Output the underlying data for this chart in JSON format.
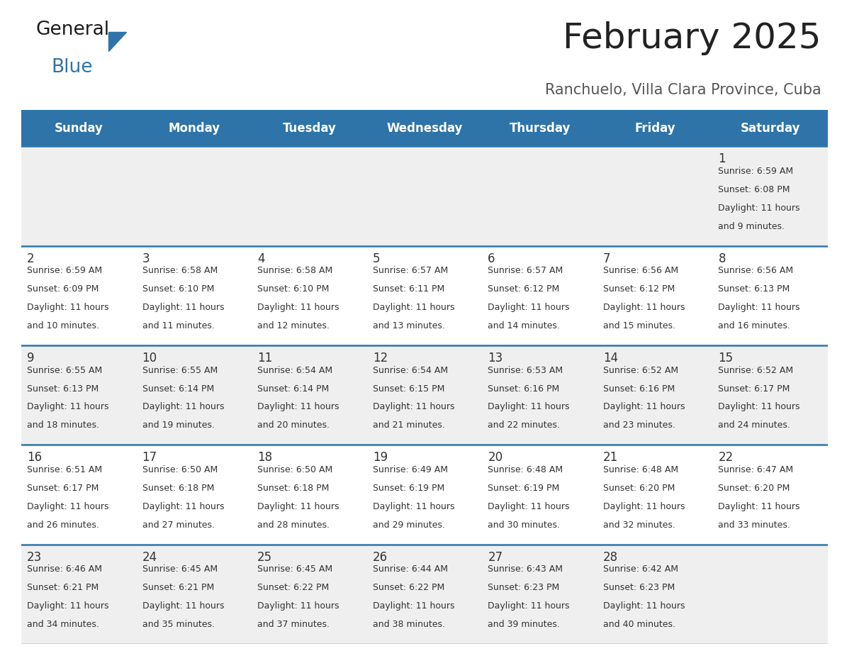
{
  "title": "February 2025",
  "subtitle": "Ranchuelo, Villa Clara Province, Cuba",
  "header_bg": "#2E74A8",
  "header_text": "#FFFFFF",
  "row_bg_odd": "#EFEFEF",
  "row_bg_even": "#FFFFFF",
  "day_headers": [
    "Sunday",
    "Monday",
    "Tuesday",
    "Wednesday",
    "Thursday",
    "Friday",
    "Saturday"
  ],
  "calendar_data": [
    [
      null,
      null,
      null,
      null,
      null,
      null,
      {
        "day": 1,
        "sunrise": "6:59 AM",
        "sunset": "6:08 PM",
        "daylight": "11 hours and 9 minutes."
      }
    ],
    [
      {
        "day": 2,
        "sunrise": "6:59 AM",
        "sunset": "6:09 PM",
        "daylight": "11 hours and 10 minutes."
      },
      {
        "day": 3,
        "sunrise": "6:58 AM",
        "sunset": "6:10 PM",
        "daylight": "11 hours and 11 minutes."
      },
      {
        "day": 4,
        "sunrise": "6:58 AM",
        "sunset": "6:10 PM",
        "daylight": "11 hours and 12 minutes."
      },
      {
        "day": 5,
        "sunrise": "6:57 AM",
        "sunset": "6:11 PM",
        "daylight": "11 hours and 13 minutes."
      },
      {
        "day": 6,
        "sunrise": "6:57 AM",
        "sunset": "6:12 PM",
        "daylight": "11 hours and 14 minutes."
      },
      {
        "day": 7,
        "sunrise": "6:56 AM",
        "sunset": "6:12 PM",
        "daylight": "11 hours and 15 minutes."
      },
      {
        "day": 8,
        "sunrise": "6:56 AM",
        "sunset": "6:13 PM",
        "daylight": "11 hours and 16 minutes."
      }
    ],
    [
      {
        "day": 9,
        "sunrise": "6:55 AM",
        "sunset": "6:13 PM",
        "daylight": "11 hours and 18 minutes."
      },
      {
        "day": 10,
        "sunrise": "6:55 AM",
        "sunset": "6:14 PM",
        "daylight": "11 hours and 19 minutes."
      },
      {
        "day": 11,
        "sunrise": "6:54 AM",
        "sunset": "6:14 PM",
        "daylight": "11 hours and 20 minutes."
      },
      {
        "day": 12,
        "sunrise": "6:54 AM",
        "sunset": "6:15 PM",
        "daylight": "11 hours and 21 minutes."
      },
      {
        "day": 13,
        "sunrise": "6:53 AM",
        "sunset": "6:16 PM",
        "daylight": "11 hours and 22 minutes."
      },
      {
        "day": 14,
        "sunrise": "6:52 AM",
        "sunset": "6:16 PM",
        "daylight": "11 hours and 23 minutes."
      },
      {
        "day": 15,
        "sunrise": "6:52 AM",
        "sunset": "6:17 PM",
        "daylight": "11 hours and 24 minutes."
      }
    ],
    [
      {
        "day": 16,
        "sunrise": "6:51 AM",
        "sunset": "6:17 PM",
        "daylight": "11 hours and 26 minutes."
      },
      {
        "day": 17,
        "sunrise": "6:50 AM",
        "sunset": "6:18 PM",
        "daylight": "11 hours and 27 minutes."
      },
      {
        "day": 18,
        "sunrise": "6:50 AM",
        "sunset": "6:18 PM",
        "daylight": "11 hours and 28 minutes."
      },
      {
        "day": 19,
        "sunrise": "6:49 AM",
        "sunset": "6:19 PM",
        "daylight": "11 hours and 29 minutes."
      },
      {
        "day": 20,
        "sunrise": "6:48 AM",
        "sunset": "6:19 PM",
        "daylight": "11 hours and 30 minutes."
      },
      {
        "day": 21,
        "sunrise": "6:48 AM",
        "sunset": "6:20 PM",
        "daylight": "11 hours and 32 minutes."
      },
      {
        "day": 22,
        "sunrise": "6:47 AM",
        "sunset": "6:20 PM",
        "daylight": "11 hours and 33 minutes."
      }
    ],
    [
      {
        "day": 23,
        "sunrise": "6:46 AM",
        "sunset": "6:21 PM",
        "daylight": "11 hours and 34 minutes."
      },
      {
        "day": 24,
        "sunrise": "6:45 AM",
        "sunset": "6:21 PM",
        "daylight": "11 hours and 35 minutes."
      },
      {
        "day": 25,
        "sunrise": "6:45 AM",
        "sunset": "6:22 PM",
        "daylight": "11 hours and 37 minutes."
      },
      {
        "day": 26,
        "sunrise": "6:44 AM",
        "sunset": "6:22 PM",
        "daylight": "11 hours and 38 minutes."
      },
      {
        "day": 27,
        "sunrise": "6:43 AM",
        "sunset": "6:23 PM",
        "daylight": "11 hours and 39 minutes."
      },
      {
        "day": 28,
        "sunrise": "6:42 AM",
        "sunset": "6:23 PM",
        "daylight": "11 hours and 40 minutes."
      },
      null
    ]
  ],
  "divider_color": "#2E74A8",
  "text_color": "#333333",
  "day_num_color": "#333333",
  "title_fontsize": 36,
  "subtitle_fontsize": 15,
  "header_fontsize": 12,
  "day_num_fontsize": 12,
  "cell_text_fontsize": 9
}
